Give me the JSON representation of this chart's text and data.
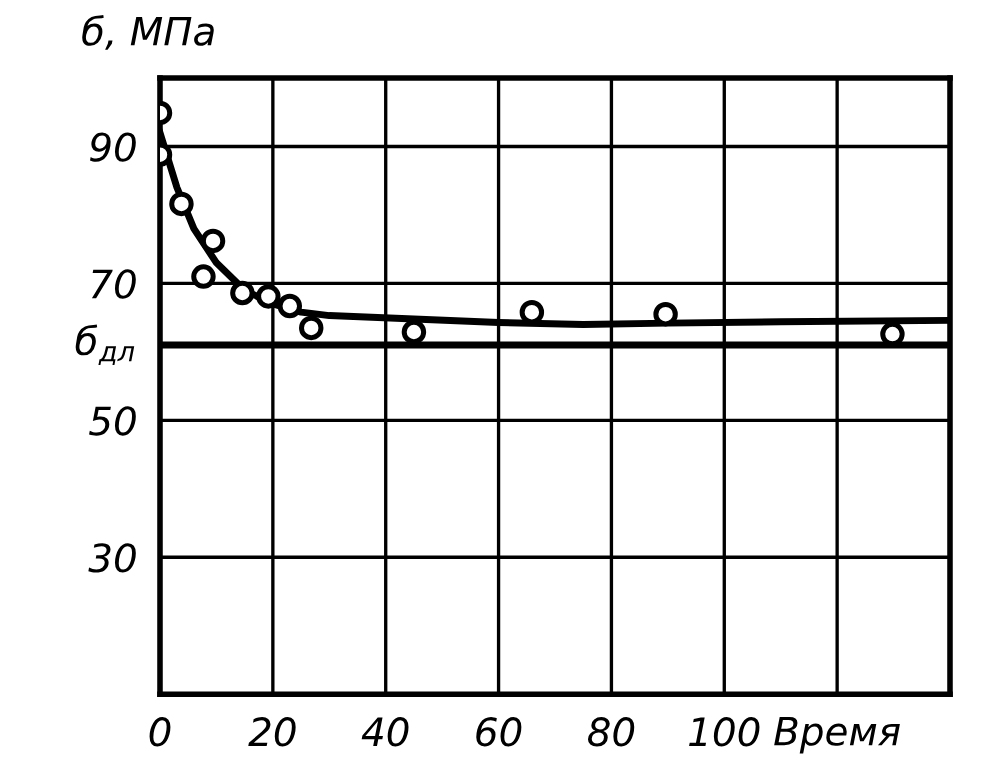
{
  "chart_data": {
    "type": "scatter",
    "ylabel": "б, МПа",
    "xlabel": "Время",
    "xlim": [
      0,
      140
    ],
    "xticks": [
      0,
      20,
      40,
      60,
      80,
      100,
      {
        "value": 120,
        "label": null
      }
    ],
    "ylim": [
      10,
      100
    ],
    "yticks": [
      {
        "value": 10,
        "label": null
      },
      30,
      50,
      70,
      90
    ],
    "grid": true,
    "series": [
      {
        "marker": "circle",
        "color": "#000000",
        "x": [
          0,
          0,
          3.8,
          9.4,
          7.7,
          14.6,
          19.2,
          23,
          26.8,
          45,
          65.9,
          89.6,
          129.8
        ],
        "values": [
          94.9,
          88.8,
          81.6,
          76.2,
          71,
          68.6,
          68.1,
          66.7,
          63.5,
          62.9,
          65.8,
          65.5,
          62.6
        ]
      },
      {
        "type": "line",
        "color": "#000000",
        "line_style": "solid",
        "x": [
          0,
          3,
          6,
          10,
          15,
          20,
          25,
          30,
          45,
          60,
          75,
          90,
          110,
          140
        ],
        "values": [
          92,
          84,
          78,
          73,
          69,
          67,
          65.8,
          65.3,
          64.8,
          64.3,
          64,
          64.2,
          64.4,
          64.6
        ]
      }
    ],
    "ref_lines": [
      {
        "axis": "y",
        "value": 61,
        "label": "б$_{дл}$",
        "color": "#000000"
      }
    ]
  }
}
